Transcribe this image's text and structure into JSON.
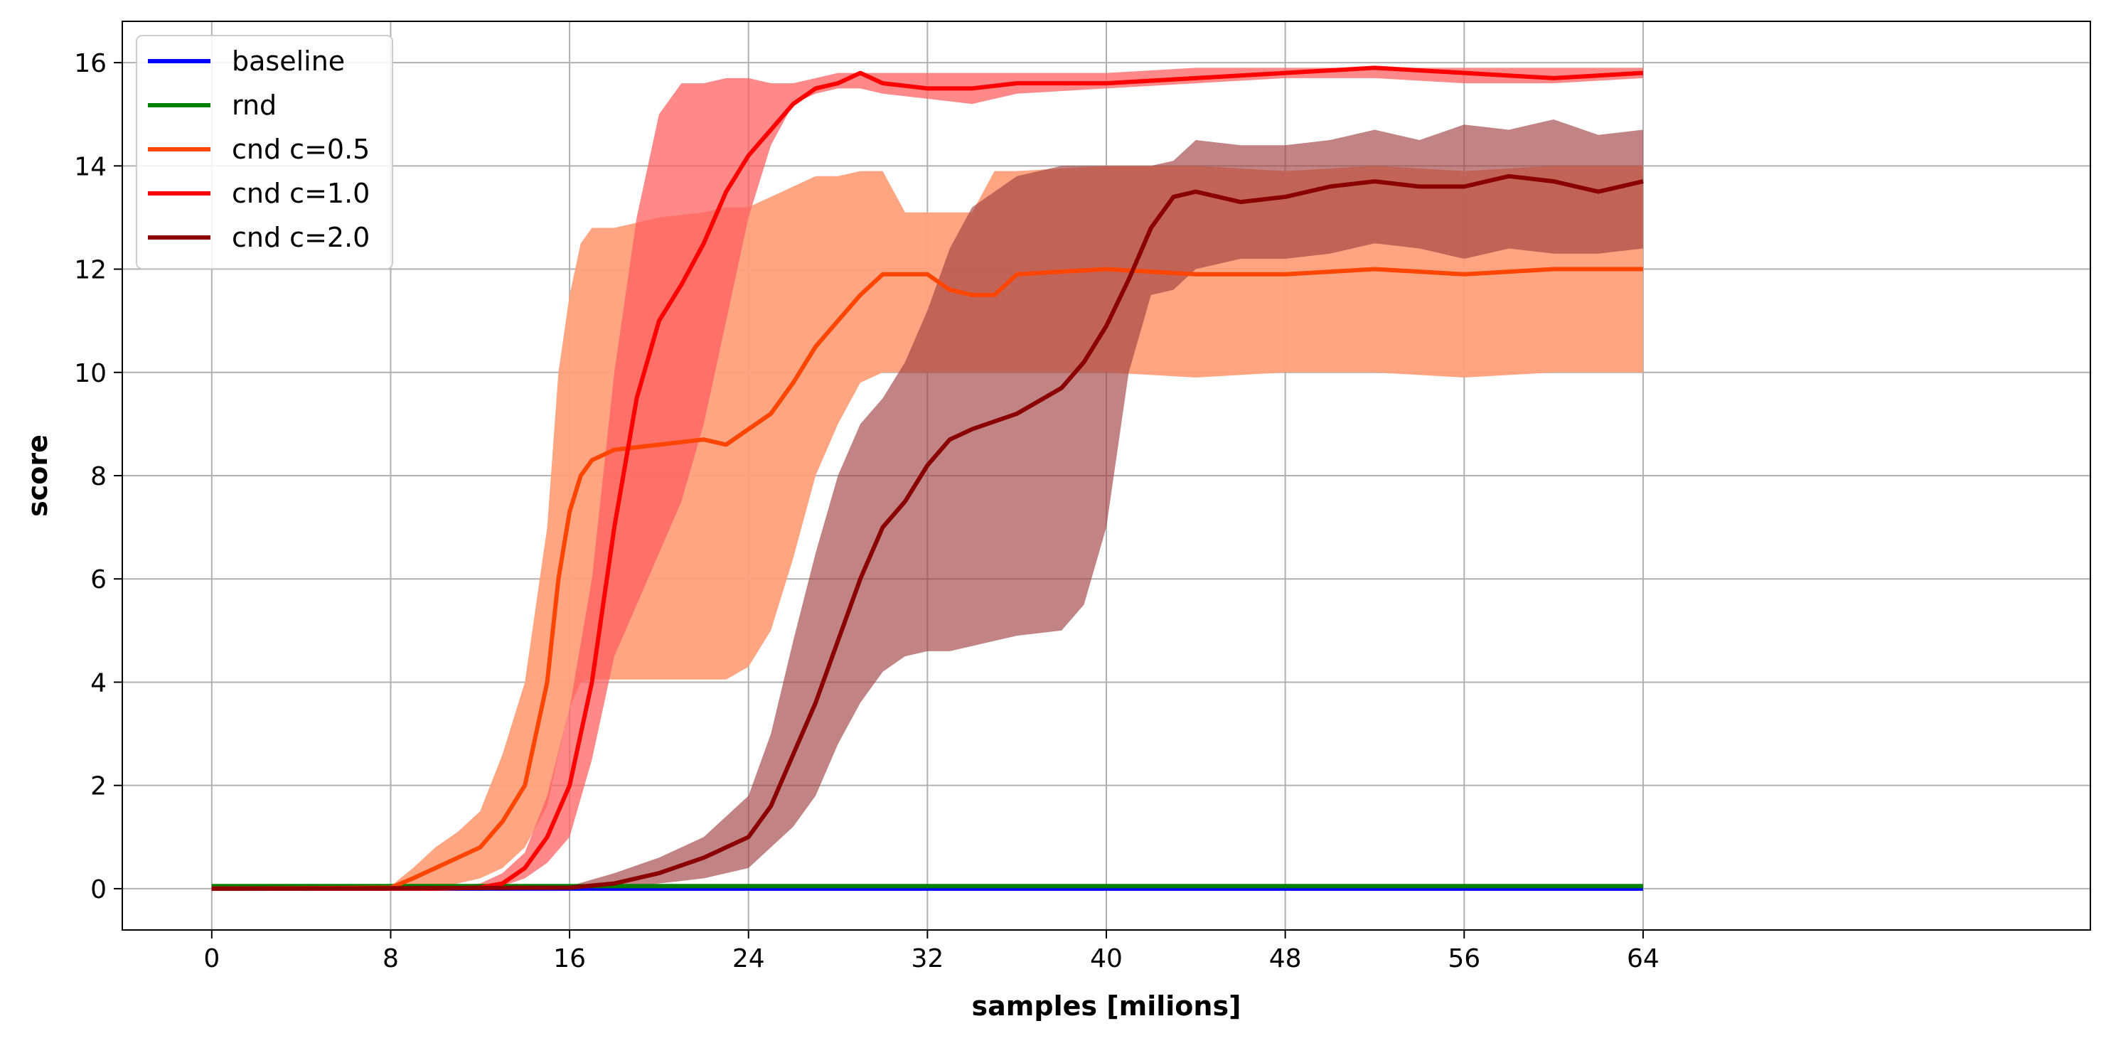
{
  "chart_data": {
    "type": "line",
    "title": "",
    "xlabel": "samples [milions]",
    "ylabel": "score",
    "xlim": [
      -4,
      84
    ],
    "ylim": [
      -0.8,
      16.8
    ],
    "xticks": [
      0,
      8,
      16,
      24,
      32,
      40,
      48,
      56,
      64
    ],
    "yticks": [
      0,
      2,
      4,
      6,
      8,
      10,
      12,
      14,
      16
    ],
    "grid": true,
    "legend_position": "top-left",
    "series": [
      {
        "name": "baseline",
        "color": "#0000ff",
        "x": [
          0,
          64
        ],
        "y": [
          0,
          0
        ],
        "band": null
      },
      {
        "name": "rnd",
        "color": "#008000",
        "x": [
          0,
          64
        ],
        "y": [
          0.05,
          0.05
        ],
        "band": null
      },
      {
        "name": "cnd c=0.5",
        "color": "#ff4500",
        "band_color": "#ffa07a",
        "x": [
          0,
          8,
          9,
          10,
          11,
          12,
          13,
          14,
          15,
          15.5,
          16,
          16.5,
          17,
          18,
          20,
          22,
          23,
          24,
          25,
          26,
          27,
          28,
          29,
          30,
          31,
          32,
          33,
          34,
          35,
          36,
          40,
          44,
          48,
          52,
          56,
          60,
          64
        ],
        "y": [
          0,
          0.02,
          0.2,
          0.4,
          0.6,
          0.8,
          1.3,
          2.0,
          4.0,
          6.0,
          7.3,
          8.0,
          8.3,
          8.5,
          8.6,
          8.7,
          8.6,
          8.9,
          9.2,
          9.8,
          10.5,
          11.0,
          11.5,
          11.9,
          11.9,
          11.9,
          11.6,
          11.5,
          11.5,
          11.9,
          12.0,
          11.9,
          11.9,
          12.0,
          11.9,
          12.0,
          12.0
        ],
        "band_lower": [
          0,
          0,
          0,
          0,
          0.1,
          0.2,
          0.4,
          0.8,
          1.6,
          2.6,
          3.5,
          4.0,
          4.05,
          4.05,
          4.05,
          4.05,
          4.05,
          4.3,
          5.0,
          6.4,
          8.0,
          9.0,
          9.8,
          10.0,
          10.0,
          10.0,
          10.0,
          10.0,
          10.0,
          10.0,
          10.0,
          9.9,
          10.0,
          10.0,
          9.9,
          10.0,
          10.0
        ],
        "band_upper": [
          0,
          0.05,
          0.4,
          0.8,
          1.1,
          1.5,
          2.6,
          4.0,
          7.0,
          10.0,
          11.5,
          12.5,
          12.8,
          12.8,
          13.0,
          13.1,
          13.2,
          13.2,
          13.4,
          13.6,
          13.8,
          13.8,
          13.9,
          13.9,
          13.1,
          13.1,
          13.1,
          13.1,
          13.9,
          13.9,
          14.0,
          14.0,
          13.9,
          14.0,
          13.9,
          14.0,
          14.0
        ]
      },
      {
        "name": "cnd c=1.0",
        "color": "#ff0000",
        "band_color": "#ff6060",
        "x": [
          0,
          10,
          12,
          13,
          14,
          15,
          16,
          17,
          18,
          19,
          20,
          21,
          22,
          23,
          24,
          25,
          26,
          27,
          28,
          29,
          30,
          32,
          34,
          36,
          40,
          44,
          48,
          52,
          56,
          60,
          64
        ],
        "y": [
          0,
          0,
          0.02,
          0.1,
          0.4,
          1.0,
          2.0,
          4.0,
          7.0,
          9.5,
          11.0,
          11.7,
          12.5,
          13.5,
          14.2,
          14.7,
          15.2,
          15.5,
          15.6,
          15.8,
          15.6,
          15.5,
          15.5,
          15.6,
          15.6,
          15.7,
          15.8,
          15.9,
          15.8,
          15.7,
          15.8
        ],
        "band_lower": [
          0,
          0,
          0,
          0.05,
          0.2,
          0.5,
          1.0,
          2.5,
          4.5,
          5.5,
          6.5,
          7.5,
          9.0,
          11.0,
          13.0,
          14.4,
          15.2,
          15.4,
          15.5,
          15.5,
          15.4,
          15.3,
          15.2,
          15.4,
          15.5,
          15.6,
          15.7,
          15.7,
          15.6,
          15.6,
          15.7
        ],
        "band_upper": [
          0,
          0.02,
          0.1,
          0.3,
          0.7,
          1.8,
          3.5,
          6.0,
          10.0,
          13.0,
          15.0,
          15.6,
          15.6,
          15.7,
          15.7,
          15.6,
          15.6,
          15.7,
          15.8,
          15.8,
          15.8,
          15.8,
          15.8,
          15.8,
          15.8,
          15.9,
          15.9,
          15.9,
          15.9,
          15.9,
          15.9
        ]
      },
      {
        "name": "cnd c=2.0",
        "color": "#8b0000",
        "band_color": "#a04040",
        "x": [
          0,
          16,
          18,
          20,
          22,
          24,
          25,
          26,
          27,
          28,
          29,
          30,
          31,
          32,
          33,
          34,
          36,
          38,
          39,
          40,
          41,
          42,
          43,
          44,
          46,
          48,
          50,
          52,
          54,
          56,
          58,
          60,
          62,
          64
        ],
        "y": [
          0,
          0.02,
          0.1,
          0.3,
          0.6,
          1.0,
          1.6,
          2.6,
          3.6,
          4.8,
          6.0,
          7.0,
          7.5,
          8.2,
          8.7,
          8.9,
          9.2,
          9.7,
          10.2,
          10.9,
          11.8,
          12.8,
          13.4,
          13.5,
          13.3,
          13.4,
          13.6,
          13.7,
          13.6,
          13.6,
          13.8,
          13.7,
          13.5,
          13.7
        ],
        "band_lower": [
          0,
          0,
          0,
          0.1,
          0.2,
          0.4,
          0.8,
          1.2,
          1.8,
          2.8,
          3.6,
          4.2,
          4.5,
          4.6,
          4.6,
          4.7,
          4.9,
          5.0,
          5.5,
          7.0,
          10.0,
          11.5,
          11.6,
          12.0,
          12.2,
          12.2,
          12.3,
          12.5,
          12.4,
          12.2,
          12.4,
          12.3,
          12.3,
          12.4
        ],
        "band_upper": [
          0,
          0.05,
          0.3,
          0.6,
          1.0,
          1.8,
          3.0,
          4.8,
          6.5,
          8.0,
          9.0,
          9.5,
          10.2,
          11.2,
          12.4,
          13.2,
          13.8,
          14.0,
          14.0,
          14.0,
          14.0,
          14.0,
          14.1,
          14.5,
          14.4,
          14.4,
          14.5,
          14.7,
          14.5,
          14.8,
          14.7,
          14.9,
          14.6,
          14.7
        ]
      }
    ]
  }
}
